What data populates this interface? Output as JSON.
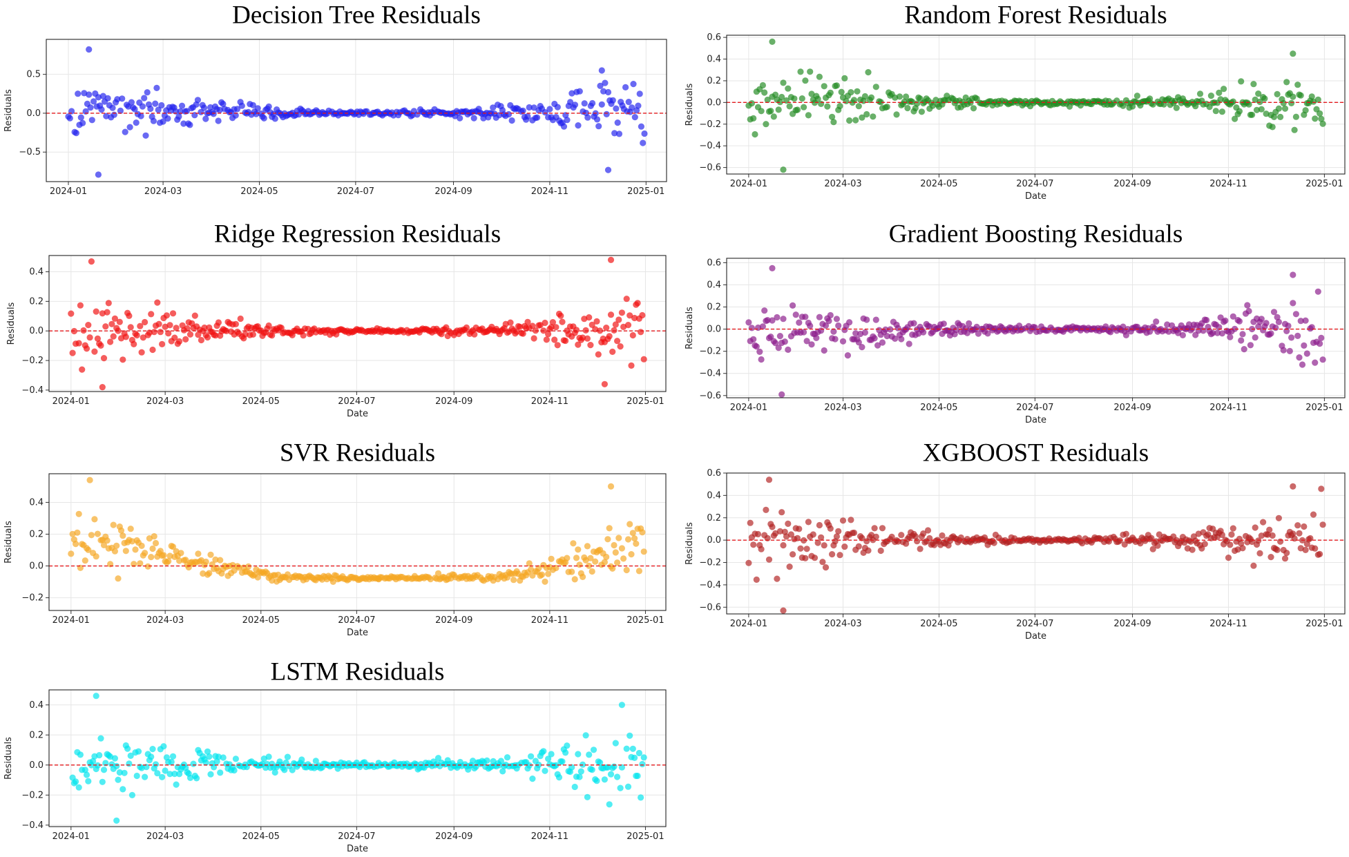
{
  "figure": {
    "background": "#ffffff",
    "grid": true,
    "zero_line_color": "#e3181c"
  },
  "chart_data": [
    {
      "type": "scatter",
      "title": "Decision Tree Residuals",
      "xlabel": "",
      "ylabel": "Residuals",
      "color": "#2222ee",
      "xlim": [
        "2023-12-18",
        "2025-01-14"
      ],
      "ylim": [
        -0.88,
        0.95
      ],
      "xticks": [
        "2024-01",
        "2024-03",
        "2024-05",
        "2024-07",
        "2024-09",
        "2024-11",
        "2025-01"
      ],
      "yticks": [
        0.5,
        0.0,
        -0.5
      ],
      "ytick_labels": [
        "0.5",
        "0.0",
        "−0.5"
      ],
      "points_generated": true,
      "notable_points": [
        {
          "x": "2024-01-14",
          "y": 0.82
        },
        {
          "x": "2024-01-20",
          "y": -0.79
        },
        {
          "x": "2024-12-08",
          "y": -0.73
        },
        {
          "x": "2024-12-04",
          "y": 0.55
        }
      ]
    },
    {
      "type": "scatter",
      "title": "Random Forest Residuals",
      "xlabel": "Date",
      "ylabel": "Residuals",
      "color": "#228b22",
      "xlim": [
        "2023-12-18",
        "2025-01-14"
      ],
      "ylim": [
        -0.66,
        0.62
      ],
      "xticks": [
        "2024-01",
        "2024-03",
        "2024-05",
        "2024-07",
        "2024-09",
        "2024-11",
        "2025-01"
      ],
      "yticks": [
        0.6,
        0.4,
        0.2,
        0.0,
        -0.2,
        -0.4,
        -0.6
      ],
      "ytick_labels": [
        "0.6",
        "0.4",
        "0.2",
        "0.0",
        "−0.2",
        "−0.4",
        "−0.6"
      ],
      "points_generated": true,
      "notable_points": [
        {
          "x": "2024-01-16",
          "y": 0.56
        },
        {
          "x": "2024-01-23",
          "y": -0.62
        },
        {
          "x": "2024-12-12",
          "y": 0.45
        }
      ]
    },
    {
      "type": "scatter",
      "title": "Ridge Regression Residuals",
      "xlabel": "Date",
      "ylabel": "Residuals",
      "color": "#f01010",
      "xlim": [
        "2023-12-18",
        "2025-01-14"
      ],
      "ylim": [
        -0.41,
        0.51
      ],
      "xticks": [
        "2024-01",
        "2024-03",
        "2024-05",
        "2024-07",
        "2024-09",
        "2024-11",
        "2025-01"
      ],
      "yticks": [
        0.4,
        0.2,
        0.0,
        -0.2,
        -0.4
      ],
      "ytick_labels": [
        "0.4",
        "0.2",
        "0.0",
        "−0.2",
        "−0.4"
      ],
      "points_generated": true,
      "notable_points": [
        {
          "x": "2024-01-14",
          "y": 0.47
        },
        {
          "x": "2024-01-21",
          "y": -0.38
        },
        {
          "x": "2024-12-10",
          "y": 0.48
        },
        {
          "x": "2024-12-06",
          "y": -0.36
        }
      ]
    },
    {
      "type": "scatter",
      "title": "Gradient Boosting Residuals",
      "xlabel": "Date",
      "ylabel": "Residuals",
      "color": "#8b1a8b",
      "xlim": [
        "2023-12-18",
        "2025-01-14"
      ],
      "ylim": [
        -0.62,
        0.64
      ],
      "xticks": [
        "2024-01",
        "2024-03",
        "2024-05",
        "2024-07",
        "2024-09",
        "2024-11",
        "2025-01"
      ],
      "yticks": [
        0.6,
        0.4,
        0.2,
        0.0,
        -0.2,
        -0.4,
        -0.6
      ],
      "ytick_labels": [
        "0.6",
        "0.4",
        "0.2",
        "0.0",
        "−0.2",
        "−0.4",
        "−0.6"
      ],
      "points_generated": true,
      "notable_points": [
        {
          "x": "2024-01-16",
          "y": 0.55
        },
        {
          "x": "2024-01-22",
          "y": -0.59
        },
        {
          "x": "2024-12-12",
          "y": 0.49
        }
      ]
    },
    {
      "type": "scatter",
      "title": "SVR Residuals",
      "xlabel": "Date",
      "ylabel": "Residuals",
      "color": "#f5a623",
      "xlim": [
        "2023-12-18",
        "2025-01-14"
      ],
      "ylim": [
        -0.28,
        0.58
      ],
      "xticks": [
        "2024-01",
        "2024-03",
        "2024-05",
        "2024-07",
        "2024-09",
        "2024-11",
        "2025-01"
      ],
      "yticks": [
        0.4,
        0.2,
        0.0,
        -0.2
      ],
      "ytick_labels": [
        "0.4",
        "0.2",
        "0.0",
        "−0.2"
      ],
      "points_generated": true,
      "notable_points": [
        {
          "x": "2024-01-13",
          "y": 0.54
        },
        {
          "x": "2024-12-10",
          "y": 0.5
        },
        {
          "x": "2024-07-15",
          "y": -0.08
        }
      ]
    },
    {
      "type": "scatter",
      "title": "XGBOOST Residuals",
      "xlabel": "Date",
      "ylabel": "Residuals",
      "color": "#b22222",
      "xlim": [
        "2023-12-18",
        "2025-01-14"
      ],
      "ylim": [
        -0.66,
        0.6
      ],
      "xticks": [
        "2024-01",
        "2024-03",
        "2024-05",
        "2024-07",
        "2024-09",
        "2024-11",
        "2025-01"
      ],
      "yticks": [
        0.6,
        0.4,
        0.2,
        0.0,
        -0.2,
        -0.4,
        -0.6
      ],
      "ytick_labels": [
        "0.6",
        "0.4",
        "0.2",
        "0.0",
        "−0.2",
        "−0.4",
        "−0.6"
      ],
      "points_generated": true,
      "notable_points": [
        {
          "x": "2024-01-14",
          "y": 0.54
        },
        {
          "x": "2024-01-23",
          "y": -0.63
        },
        {
          "x": "2024-12-12",
          "y": 0.48
        }
      ]
    },
    {
      "type": "scatter",
      "title": "LSTM Residuals",
      "xlabel": "Date",
      "ylabel": "Residuals",
      "color": "#00e5ee",
      "xlim": [
        "2023-12-18",
        "2025-01-14"
      ],
      "ylim": [
        -0.41,
        0.5
      ],
      "xticks": [
        "2024-01",
        "2024-03",
        "2024-05",
        "2024-07",
        "2024-09",
        "2024-11",
        "2025-01"
      ],
      "yticks": [
        0.4,
        0.2,
        0.0,
        -0.2,
        -0.4
      ],
      "ytick_labels": [
        "0.4",
        "0.2",
        "0.0",
        "−0.2",
        "−0.4"
      ],
      "points_generated": true,
      "notable_points": [
        {
          "x": "2024-01-17",
          "y": 0.46
        },
        {
          "x": "2024-01-30",
          "y": -0.37
        },
        {
          "x": "2024-12-17",
          "y": 0.4
        }
      ]
    }
  ]
}
